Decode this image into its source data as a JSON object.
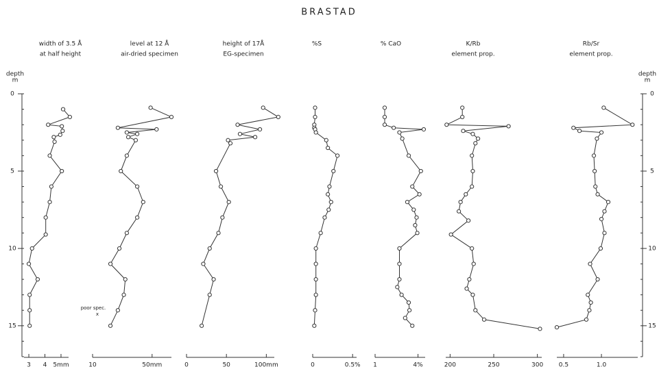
{
  "chart_data": {
    "type": "depth-profile",
    "title": "BRASTAD",
    "ylabel": "depth",
    "yunit": "m",
    "ylim": [
      0,
      17
    ],
    "yticks": [
      0,
      5,
      10,
      15
    ],
    "annotation": "poor spec.",
    "annotation_marker": "x",
    "panels": [
      {
        "header": [
          "width of 3.5 Å",
          "at half height"
        ],
        "xlim": [
          2.7,
          5.47
        ],
        "xticks": [
          3,
          4,
          {
            "value": 5,
            "label": "5mm"
          }
        ],
        "depth": [
          1.0,
          1.5,
          2.0,
          2.1,
          2.4,
          2.65,
          2.8,
          3.1,
          4.0,
          5.0,
          6.0,
          7.0,
          8.0,
          9.1,
          10.0,
          11.0,
          12.0,
          13.0,
          14.0,
          15.0
        ],
        "values": [
          5.13,
          5.55,
          4.2,
          5.05,
          5.1,
          4.95,
          4.55,
          4.6,
          4.3,
          5.05,
          4.4,
          4.3,
          4.05,
          4.05,
          3.2,
          3.0,
          3.55,
          3.05,
          3.05,
          3.05
        ]
      },
      {
        "header": [
          "level at 12 Å",
          "air-dried specimen"
        ],
        "xlim": [
          10,
          63
        ],
        "xticks": [
          10,
          {
            "value": 50,
            "label": "50mm"
          }
        ],
        "depth": [
          0.9,
          1.5,
          2.2,
          2.3,
          2.5,
          2.6,
          2.8,
          3.0,
          4.0,
          5.0,
          6.0,
          7.0,
          8.0,
          9.0,
          10.0,
          11.0,
          12.0,
          13.0,
          14.0,
          15.0
        ],
        "values": [
          49,
          63,
          27,
          53,
          33,
          40,
          34,
          39,
          33,
          29,
          40,
          44,
          40,
          33,
          28,
          22,
          32,
          31,
          27,
          22
        ]
      },
      {
        "header": [
          "height of 17Å",
          "EG-specimen"
        ],
        "xlim": [
          0,
          110
        ],
        "xticks": [
          0,
          50,
          {
            "value": 100,
            "label": "100mm"
          }
        ],
        "depth": [
          0.9,
          1.5,
          2.0,
          2.3,
          2.6,
          2.8,
          3.0,
          3.2,
          5.0,
          6.0,
          7.0,
          8.0,
          9.0,
          10.0,
          11.0,
          12.0,
          13.0,
          15.0
        ],
        "values": [
          96,
          115,
          64,
          92,
          67,
          86,
          52,
          55,
          37,
          43,
          53,
          45,
          40,
          29,
          21,
          34,
          29,
          19
        ]
      },
      {
        "header": [
          "%S"
        ],
        "xlim": [
          0,
          0.55
        ],
        "xticks": [
          0,
          {
            "value": 0.5,
            "label": "0.5%"
          }
        ],
        "depth": [
          0.9,
          1.5,
          2.0,
          2.2,
          2.3,
          2.5,
          3.0,
          3.5,
          4.0,
          5.0,
          6.0,
          6.5,
          7.0,
          7.5,
          8.0,
          9.0,
          10.0,
          11.0,
          12.0,
          13.0,
          14.0,
          15.0
        ],
        "values": [
          0.03,
          0.03,
          0.02,
          0.02,
          0.03,
          0.04,
          0.17,
          0.19,
          0.31,
          0.26,
          0.21,
          0.19,
          0.23,
          0.2,
          0.15,
          0.1,
          0.04,
          0.04,
          0.04,
          0.04,
          0.03,
          0.02
        ]
      },
      {
        "header": [
          "% CaO"
        ],
        "xlim": [
          1,
          4.5
        ],
        "xticks": [
          1,
          {
            "value": 4,
            "label": "4%"
          }
        ],
        "depth": [
          0.9,
          1.5,
          2.0,
          2.2,
          2.3,
          2.5,
          2.9,
          4.0,
          5.0,
          6.0,
          6.5,
          7.0,
          7.5,
          8.0,
          8.5,
          9.0,
          10.0,
          11.0,
          12.0,
          12.5,
          13.0,
          13.5,
          14.0,
          14.5,
          15.0
        ],
        "values": [
          1.67,
          1.67,
          1.67,
          2.3,
          4.4,
          2.7,
          2.9,
          3.35,
          4.2,
          3.6,
          4.1,
          3.25,
          3.7,
          3.9,
          3.8,
          3.95,
          2.7,
          2.7,
          2.7,
          2.55,
          2.85,
          3.35,
          3.4,
          3.1,
          3.6
        ]
      },
      {
        "header": [
          "K/Rb",
          "element   prop."
        ],
        "xlim": [
          195,
          305
        ],
        "xticks": [
          200,
          250,
          300
        ],
        "depth": [
          0.9,
          1.5,
          2.0,
          2.1,
          2.4,
          2.6,
          2.9,
          3.2,
          4.0,
          5.0,
          6.0,
          6.5,
          7.0,
          7.6,
          8.2,
          9.1,
          10.0,
          11.0,
          12.0,
          12.6,
          13.0,
          14.0,
          14.6,
          15.2
        ],
        "values": [
          214,
          214,
          196,
          267,
          215,
          226,
          232,
          229,
          225,
          226,
          225,
          218,
          212,
          210,
          221,
          201,
          225,
          227,
          222,
          219,
          226,
          229,
          239,
          303
        ]
      },
      {
        "header": [
          "Rb/Sr",
          "element   prop."
        ],
        "xlim": [
          0.41,
          1.48
        ],
        "xticks": [
          0.5,
          {
            "value": 1,
            "label": "1.0"
          }
        ],
        "depth": [
          0.9,
          2.0,
          2.2,
          2.4,
          2.5,
          2.9,
          4.0,
          5.0,
          6.0,
          6.5,
          7.0,
          7.6,
          8.1,
          9.0,
          10.0,
          11.0,
          12.0,
          13.0,
          13.5,
          14.0,
          14.6,
          15.1
        ],
        "values": [
          1.03,
          1.41,
          0.63,
          0.71,
          1.0,
          0.94,
          0.9,
          0.91,
          0.92,
          0.95,
          1.09,
          1.04,
          1.0,
          1.04,
          0.99,
          0.85,
          0.95,
          0.82,
          0.86,
          0.84,
          0.8,
          0.41
        ]
      }
    ]
  }
}
